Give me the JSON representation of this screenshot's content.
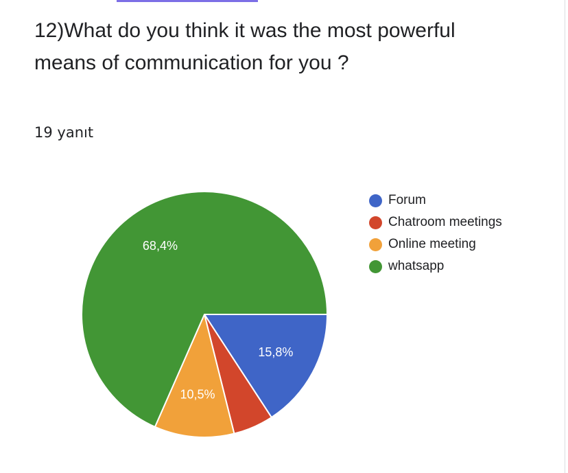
{
  "question": {
    "title": "12)What do you think it was the most powerful means of communication for you ?",
    "responses": "19 yanıt"
  },
  "chart_data": {
    "type": "pie",
    "categories": [
      "Forum",
      "Chatroom meetings",
      "Online meeting",
      "whatsapp"
    ],
    "values": [
      15.8,
      5.3,
      10.5,
      68.4
    ],
    "labels": [
      "15,8%",
      "",
      "10,5%",
      "68,4%"
    ],
    "colors": [
      "#3f65c7",
      "#d2462b",
      "#f1a13a",
      "#429635"
    ],
    "legend_position": "right"
  }
}
